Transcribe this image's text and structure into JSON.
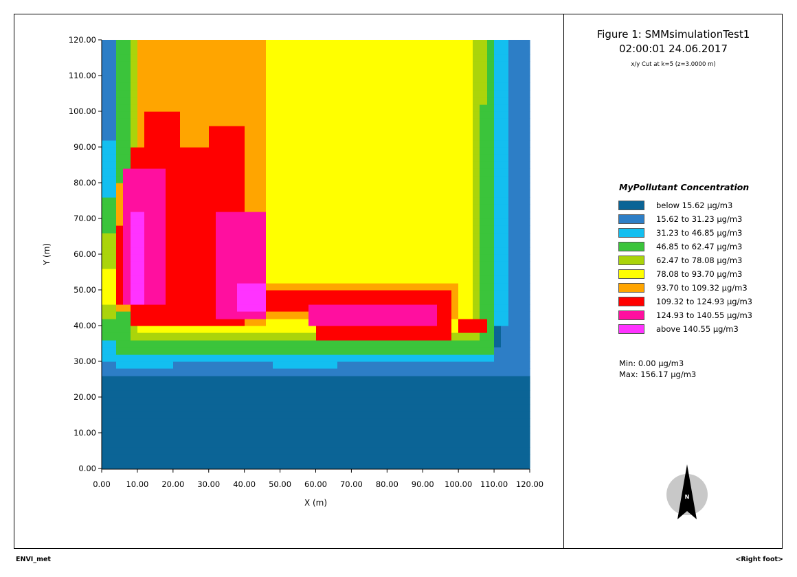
{
  "figure": {
    "title": "Figure 1: SMMsimulationTest1",
    "timestamp": "02:00:01 24.06.2017",
    "cut_info": "x/y Cut at k=5 (z=3.0000 m)"
  },
  "legend": {
    "title": "MyPollutant Concentration",
    "items": [
      {
        "label": "below 15.62 µg/m3",
        "color": "#0b6496"
      },
      {
        "label": "15.62 to 31.23 µg/m3",
        "color": "#2d7ec6"
      },
      {
        "label": "31.23 to 46.85 µg/m3",
        "color": "#13bff0"
      },
      {
        "label": "46.85 to 62.47 µg/m3",
        "color": "#3bc43b"
      },
      {
        "label": "62.47 to 78.08 µg/m3",
        "color": "#abd40b"
      },
      {
        "label": "78.08 to 93.70 µg/m3",
        "color": "#ffff00"
      },
      {
        "label": "93.70 to 109.32 µg/m3",
        "color": "#ffa500"
      },
      {
        "label": "109.32 to 124.93 µg/m3",
        "color": "#ff0000"
      },
      {
        "label": "124.93 to 140.55 µg/m3",
        "color": "#ff0f9f"
      },
      {
        "label": "above 140.55 µg/m3",
        "color": "#ff33ff"
      }
    ]
  },
  "stats": {
    "min": "Min: 0.00 µg/m3",
    "max": "Max: 156.17 µg/m3"
  },
  "compass": {
    "label": "N",
    "icon": "north-arrow-icon"
  },
  "footer": {
    "left": "ENVI_met",
    "right": "<Right foot>"
  },
  "chart_data": {
    "type": "heatmap",
    "xlabel": "X (m)",
    "ylabel": "Y (m)",
    "xlim": [
      0,
      120
    ],
    "ylim": [
      0,
      120
    ],
    "x_ticks": [
      "0.00",
      "10.00",
      "20.00",
      "30.00",
      "40.00",
      "50.00",
      "60.00",
      "70.00",
      "80.00",
      "90.00",
      "100.00",
      "110.00",
      "120.00"
    ],
    "y_ticks": [
      "0.00",
      "10.00",
      "20.00",
      "30.00",
      "40.00",
      "50.00",
      "60.00",
      "70.00",
      "80.00",
      "90.00",
      "100.00",
      "110.00",
      "120.00"
    ],
    "cell_size_m": 2,
    "class_regions": [
      {
        "class": 1,
        "poly": [
          [
            0,
            26
          ],
          [
            120,
            26
          ],
          [
            120,
            120
          ],
          [
            0,
            120
          ]
        ]
      },
      {
        "class": 2,
        "poly": [
          [
            0,
            26
          ],
          [
            120,
            26
          ],
          [
            120,
            34
          ],
          [
            0,
            34
          ]
        ]
      },
      {
        "class": 2,
        "poly": [
          [
            0,
            26
          ],
          [
            4,
            26
          ],
          [
            4,
            120
          ],
          [
            0,
            120
          ]
        ]
      },
      {
        "class": 2,
        "poly": [
          [
            112,
            26
          ],
          [
            120,
            26
          ],
          [
            120,
            120
          ],
          [
            112,
            120
          ]
        ]
      },
      {
        "class": 2,
        "poly": [
          [
            80,
            26
          ],
          [
            100,
            26
          ],
          [
            100,
            30
          ],
          [
            80,
            30
          ]
        ]
      },
      {
        "class": 2,
        "poly": [
          [
            48,
            26
          ],
          [
            70,
            26
          ],
          [
            70,
            28
          ],
          [
            48,
            28
          ]
        ]
      },
      {
        "class": 3,
        "poly": [
          [
            0,
            30
          ],
          [
            110,
            30
          ],
          [
            110,
            32
          ],
          [
            0,
            32
          ]
        ]
      },
      {
        "class": 3,
        "poly": [
          [
            4,
            28
          ],
          [
            20,
            28
          ],
          [
            20,
            30
          ],
          [
            4,
            30
          ]
        ]
      },
      {
        "class": 3,
        "poly": [
          [
            48,
            28
          ],
          [
            66,
            28
          ],
          [
            66,
            30
          ],
          [
            48,
            30
          ]
        ]
      },
      {
        "class": 3,
        "poly": [
          [
            0,
            30
          ],
          [
            4,
            30
          ],
          [
            4,
            36
          ],
          [
            0,
            36
          ]
        ]
      },
      {
        "class": 3,
        "poly": [
          [
            0,
            76
          ],
          [
            4,
            76
          ],
          [
            4,
            92
          ],
          [
            0,
            92
          ]
        ]
      },
      {
        "class": 3,
        "poly": [
          [
            110,
            40
          ],
          [
            114,
            40
          ],
          [
            114,
            120
          ],
          [
            110,
            120
          ]
        ]
      },
      {
        "class": 4,
        "poly": [
          [
            4,
            32
          ],
          [
            110,
            32
          ],
          [
            110,
            36
          ],
          [
            4,
            36
          ]
        ]
      },
      {
        "class": 4,
        "poly": [
          [
            4,
            36
          ],
          [
            8,
            36
          ],
          [
            8,
            120
          ],
          [
            4,
            120
          ]
        ]
      },
      {
        "class": 4,
        "poly": [
          [
            0,
            36
          ],
          [
            4,
            36
          ],
          [
            4,
            42
          ],
          [
            0,
            42
          ]
        ]
      },
      {
        "class": 4,
        "poly": [
          [
            0,
            66
          ],
          [
            4,
            66
          ],
          [
            4,
            76
          ],
          [
            0,
            76
          ]
        ]
      },
      {
        "class": 4,
        "poly": [
          [
            106,
            34
          ],
          [
            110,
            34
          ],
          [
            110,
            120
          ],
          [
            106,
            120
          ]
        ]
      },
      {
        "class": 5,
        "poly": [
          [
            8,
            36
          ],
          [
            106,
            36
          ],
          [
            106,
            38
          ],
          [
            8,
            38
          ]
        ]
      },
      {
        "class": 5,
        "poly": [
          [
            8,
            38
          ],
          [
            10,
            38
          ],
          [
            10,
            120
          ],
          [
            8,
            120
          ]
        ]
      },
      {
        "class": 5,
        "poly": [
          [
            0,
            42
          ],
          [
            4,
            42
          ],
          [
            4,
            46
          ],
          [
            0,
            46
          ]
        ]
      },
      {
        "class": 5,
        "poly": [
          [
            0,
            56
          ],
          [
            4,
            56
          ],
          [
            4,
            66
          ],
          [
            0,
            66
          ]
        ]
      },
      {
        "class": 5,
        "poly": [
          [
            104,
            38
          ],
          [
            106,
            38
          ],
          [
            106,
            120
          ],
          [
            104,
            120
          ]
        ]
      },
      {
        "class": 5,
        "poly": [
          [
            60,
            72
          ],
          [
            68,
            72
          ],
          [
            68,
            110
          ],
          [
            60,
            110
          ]
        ]
      },
      {
        "class": 5,
        "poly": [
          [
            58,
            102
          ],
          [
            108,
            102
          ],
          [
            108,
            120
          ],
          [
            58,
            120
          ]
        ]
      },
      {
        "class": 5,
        "poly": [
          [
            52,
            56
          ],
          [
            70,
            56
          ],
          [
            70,
            66
          ],
          [
            52,
            66
          ]
        ]
      },
      {
        "class": 5,
        "poly": [
          [
            96,
            60
          ],
          [
            104,
            60
          ],
          [
            104,
            110
          ],
          [
            96,
            110
          ]
        ]
      },
      {
        "class": 6,
        "poly": [
          [
            10,
            38
          ],
          [
            104,
            38
          ],
          [
            104,
            120
          ],
          [
            10,
            120
          ]
        ]
      },
      {
        "class": 6,
        "poly": [
          [
            0,
            46
          ],
          [
            4,
            46
          ],
          [
            4,
            56
          ],
          [
            0,
            56
          ]
        ]
      },
      {
        "class": 7,
        "poly": [
          [
            10,
            40
          ],
          [
            46,
            40
          ],
          [
            46,
            120
          ],
          [
            10,
            120
          ]
        ]
      },
      {
        "class": 7,
        "poly": [
          [
            46,
            42
          ],
          [
            100,
            42
          ],
          [
            100,
            52
          ],
          [
            46,
            52
          ]
        ]
      },
      {
        "class": 7,
        "poly": [
          [
            4,
            44
          ],
          [
            10,
            44
          ],
          [
            10,
            80
          ],
          [
            4,
            80
          ]
        ]
      },
      {
        "class": 8,
        "poly": [
          [
            8,
            40
          ],
          [
            40,
            40
          ],
          [
            40,
            90
          ],
          [
            8,
            90
          ]
        ]
      },
      {
        "class": 8,
        "poly": [
          [
            12,
            90
          ],
          [
            22,
            90
          ],
          [
            22,
            100
          ],
          [
            12,
            100
          ]
        ]
      },
      {
        "class": 8,
        "poly": [
          [
            30,
            90
          ],
          [
            40,
            90
          ],
          [
            40,
            96
          ],
          [
            30,
            96
          ]
        ]
      },
      {
        "class": 8,
        "poly": [
          [
            40,
            44
          ],
          [
            98,
            44
          ],
          [
            98,
            50
          ],
          [
            40,
            50
          ]
        ]
      },
      {
        "class": 8,
        "poly": [
          [
            60,
            36
          ],
          [
            98,
            36
          ],
          [
            98,
            44
          ],
          [
            60,
            44
          ]
        ]
      },
      {
        "class": 8,
        "poly": [
          [
            4,
            46
          ],
          [
            8,
            46
          ],
          [
            8,
            68
          ],
          [
            4,
            68
          ]
        ]
      },
      {
        "class": 8,
        "poly": [
          [
            100,
            38
          ],
          [
            108,
            38
          ],
          [
            108,
            42
          ],
          [
            100,
            42
          ]
        ]
      },
      {
        "class": 9,
        "poly": [
          [
            6,
            46
          ],
          [
            18,
            46
          ],
          [
            18,
            84
          ],
          [
            6,
            84
          ]
        ]
      },
      {
        "class": 9,
        "poly": [
          [
            32,
            42
          ],
          [
            46,
            42
          ],
          [
            46,
            72
          ],
          [
            32,
            72
          ]
        ]
      },
      {
        "class": 9,
        "poly": [
          [
            58,
            40
          ],
          [
            94,
            40
          ],
          [
            94,
            46
          ],
          [
            58,
            46
          ]
        ]
      },
      {
        "class": 10,
        "poly": [
          [
            8,
            46
          ],
          [
            12,
            46
          ],
          [
            12,
            72
          ],
          [
            8,
            72
          ]
        ]
      },
      {
        "class": 10,
        "poly": [
          [
            38,
            44
          ],
          [
            46,
            44
          ],
          [
            46,
            52
          ],
          [
            38,
            52
          ]
        ]
      }
    ]
  }
}
